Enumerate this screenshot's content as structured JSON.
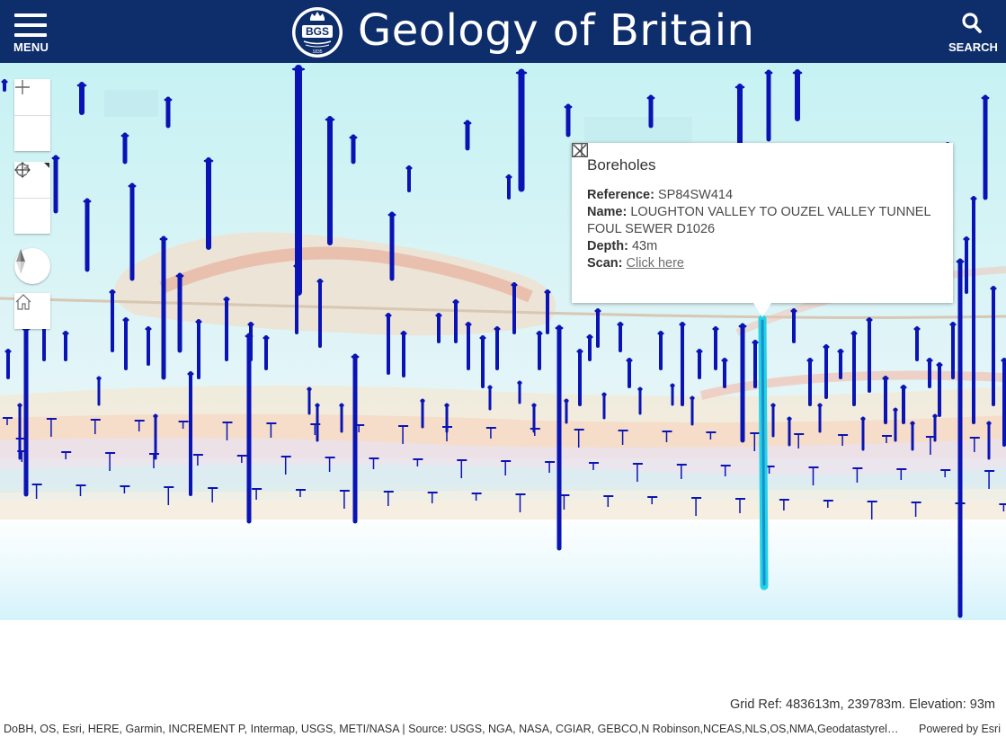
{
  "header": {
    "menu_label": "MENU",
    "title": "Geology of Britain",
    "search_label": "SEARCH",
    "logo_text": "BGS",
    "logo_year": "1835"
  },
  "map_controls": {
    "zoom_in": "+",
    "zoom_out": "−"
  },
  "popup": {
    "title": "Boreholes",
    "fields": [
      {
        "label": "Reference:",
        "value": "SP84SW414"
      },
      {
        "label": "Name:",
        "value": "LOUGHTON VALLEY TO OUZEL VALLEY TUNNEL FOUL SEWER D1026"
      },
      {
        "label": "Depth:",
        "value": "43m"
      },
      {
        "label": "Scan:",
        "value": "Click here"
      }
    ]
  },
  "status": {
    "grid_ref": "Grid Ref: 483613m, 239783m. Elevation: 93m"
  },
  "attribution": {
    "sources": "DoBH, OS, Esri, HERE, Garmin, INCREMENT P, Intermap, USGS, METI/NASA | Source: USGS, NGA, NASA, CGIAR, GEBCO,N Robinson,NCEAS,NLS,OS,NMA,Geodatastyrelsen,Rijkswaterstaat,GSA,Geoland,FEMA,Intermap and the GIS user community",
    "powered_by": "Powered by Esri"
  },
  "colors": {
    "header_bg": "#0d2d6b",
    "borehole": "#0a14b4",
    "selected_borehole": "#22d3e6"
  },
  "icons": [
    "menu-icon",
    "bgs-logo",
    "search-icon",
    "zoom-in-icon",
    "zoom-out-icon",
    "pan-icon",
    "rotate-icon",
    "compass-icon",
    "home-icon",
    "dock-icon",
    "close-icon"
  ]
}
